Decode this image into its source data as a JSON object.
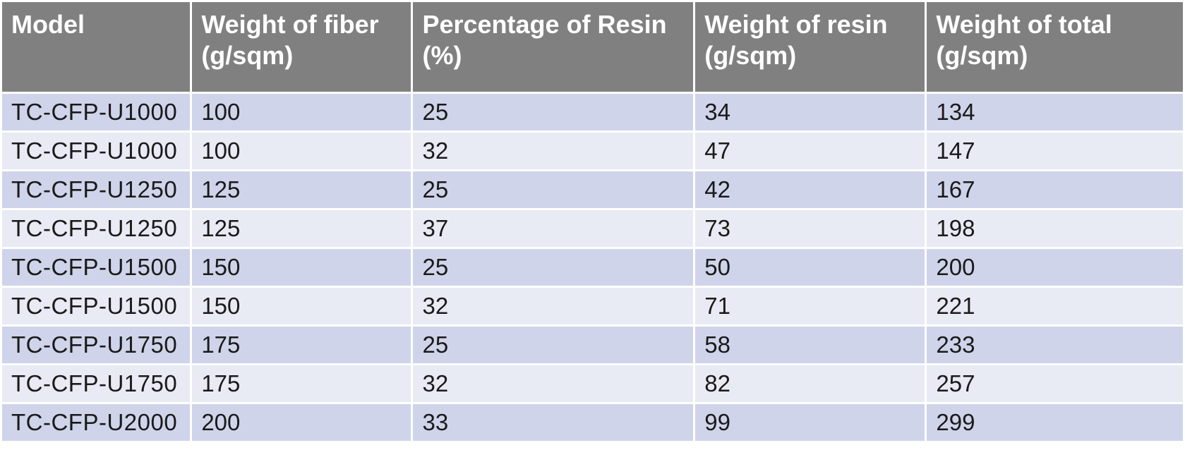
{
  "table": {
    "headers": [
      "Model",
      "Weight of fiber\n(g/sqm)",
      "Percentage of Resin\n(%)",
      "Weight of resin\n(g/sqm)",
      "Weight of total\n(g/sqm)"
    ],
    "rows": [
      [
        "TC-CFP-U1000",
        "100",
        "25",
        "34",
        "134"
      ],
      [
        "TC-CFP-U1000",
        "100",
        "32",
        "47",
        "147"
      ],
      [
        "TC-CFP-U1250",
        "125",
        "25",
        "42",
        "167"
      ],
      [
        "TC-CFP-U1250",
        "125",
        "37",
        "73",
        "198"
      ],
      [
        "TC-CFP-U1500",
        "150",
        "25",
        "50",
        "200"
      ],
      [
        "TC-CFP-U1500",
        "150",
        "32",
        "71",
        "221"
      ],
      [
        "TC-CFP-U1750",
        "175",
        "25",
        "58",
        "233"
      ],
      [
        "TC-CFP-U1750",
        "175",
        "32",
        "82",
        "257"
      ],
      [
        "TC-CFP-U2000",
        "200",
        "33",
        "99",
        "299"
      ]
    ]
  },
  "colors": {
    "header_bg": "#808080",
    "header_text": "#ffffff",
    "row_dark": "#cfd4ea",
    "row_light": "#e8eaf4"
  }
}
